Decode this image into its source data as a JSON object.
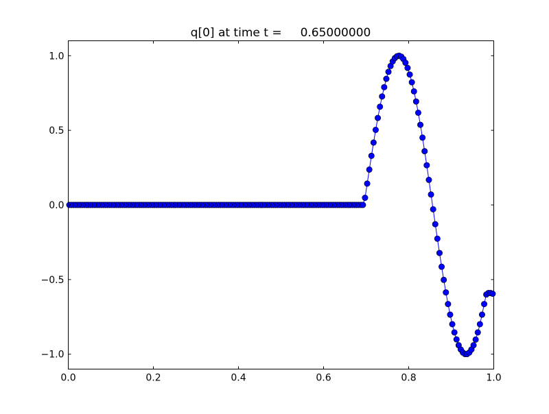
{
  "chart_data": {
    "type": "scatter",
    "title": "q[0] at time t =     0.65000000",
    "xlabel": "",
    "ylabel": "",
    "xlim": [
      0.0,
      1.0
    ],
    "ylim": [
      -1.1,
      1.1
    ],
    "grid": false,
    "marker_color": "#0000ff",
    "marker_edge_color": "#000000",
    "line_color": "#0000ff",
    "x_ticks": [
      "0.0",
      "0.2",
      "0.4",
      "0.6",
      "0.8",
      "1.0"
    ],
    "x_tick_values": [
      0.0,
      0.2,
      0.4,
      0.6,
      0.8,
      1.0
    ],
    "y_ticks": [
      "−1.0",
      "−0.5",
      "0.0",
      "0.5",
      "1.0"
    ],
    "y_tick_values": [
      -1.0,
      -0.5,
      0.0,
      0.5,
      1.0
    ],
    "x": [
      0.0025,
      0.0075,
      0.0125,
      0.0175,
      0.0225,
      0.0275,
      0.0325,
      0.0375,
      0.0425,
      0.0475,
      0.0525,
      0.0575,
      0.0625,
      0.0675,
      0.0725,
      0.0775,
      0.0825,
      0.0875,
      0.0925,
      0.0975,
      0.1025,
      0.1075,
      0.1125,
      0.1175,
      0.1225,
      0.1275,
      0.1325,
      0.1375,
      0.1425,
      0.1475,
      0.1525,
      0.1575,
      0.1625,
      0.1675,
      0.1725,
      0.1775,
      0.1825,
      0.1875,
      0.1925,
      0.1975,
      0.2025,
      0.2075,
      0.2125,
      0.2175,
      0.2225,
      0.2275,
      0.2325,
      0.2375,
      0.2425,
      0.2475,
      0.2525,
      0.2575,
      0.2625,
      0.2675,
      0.2725,
      0.2775,
      0.2825,
      0.2875,
      0.2925,
      0.2975,
      0.3025,
      0.3075,
      0.3125,
      0.3175,
      0.3225,
      0.3275,
      0.3325,
      0.3375,
      0.3425,
      0.3475,
      0.3525,
      0.3575,
      0.3625,
      0.3675,
      0.3725,
      0.3775,
      0.3825,
      0.3875,
      0.3925,
      0.3975,
      0.4025,
      0.4075,
      0.4125,
      0.4175,
      0.4225,
      0.4275,
      0.4325,
      0.4375,
      0.4425,
      0.4475,
      0.4525,
      0.4575,
      0.4625,
      0.4675,
      0.4725,
      0.4775,
      0.4825,
      0.4875,
      0.4925,
      0.4975,
      0.5025,
      0.5075,
      0.5125,
      0.5175,
      0.5225,
      0.5275,
      0.5325,
      0.5375,
      0.5425,
      0.5475,
      0.5525,
      0.5575,
      0.5625,
      0.5675,
      0.5725,
      0.5775,
      0.5825,
      0.5875,
      0.5925,
      0.5975,
      0.6025,
      0.6075,
      0.6125,
      0.6175,
      0.6225,
      0.6275,
      0.6325,
      0.6375,
      0.6425,
      0.6475,
      0.6525,
      0.6575,
      0.6625,
      0.6675,
      0.6725,
      0.6775,
      0.6825,
      0.6875,
      0.6925,
      0.6975,
      0.7025,
      0.7075,
      0.7125,
      0.7175,
      0.7225,
      0.7275,
      0.7325,
      0.7375,
      0.7425,
      0.7475,
      0.7525,
      0.7575,
      0.7625,
      0.7675,
      0.7725,
      0.7775,
      0.7825,
      0.7875,
      0.7925,
      0.7975,
      0.8025,
      0.8075,
      0.8125,
      0.8175,
      0.8225,
      0.8275,
      0.8325,
      0.8375,
      0.8425,
      0.8475,
      0.8525,
      0.8575,
      0.8625,
      0.8675,
      0.8725,
      0.8775,
      0.8825,
      0.8875,
      0.8925,
      0.8975,
      0.9025,
      0.9075,
      0.9125,
      0.9175,
      0.9225,
      0.9275,
      0.9325,
      0.9375,
      0.9425,
      0.9475,
      0.9525,
      0.9575,
      0.9625,
      0.9675,
      0.9725,
      0.9775,
      0.9825,
      0.9875,
      0.9925,
      0.9975
    ],
    "y": [
      0,
      0,
      0,
      0,
      0,
      0,
      0,
      0,
      0,
      0,
      0,
      0,
      0,
      0,
      0,
      0,
      0,
      0,
      0,
      0,
      0,
      0,
      0,
      0,
      0,
      0,
      0,
      0,
      0,
      0,
      0,
      0,
      0,
      0,
      0,
      0,
      0,
      0,
      0,
      0,
      0,
      0,
      0,
      0,
      0,
      0,
      0,
      0,
      0,
      0,
      0,
      0,
      0,
      0,
      0,
      0,
      0,
      0,
      0,
      0,
      0,
      0,
      0,
      0,
      0,
      0,
      0,
      0,
      0,
      0,
      0,
      0,
      0,
      0,
      0,
      0,
      0,
      0,
      0,
      0,
      0,
      0,
      0,
      0,
      0,
      0,
      0,
      0,
      0,
      0,
      0,
      0,
      0,
      0,
      0,
      0,
      0,
      0,
      0,
      0,
      0,
      0,
      0,
      0,
      0,
      0,
      0,
      0,
      0,
      0,
      0,
      0,
      0,
      0,
      0,
      0,
      0,
      0,
      0,
      0,
      0,
      0,
      0,
      0,
      0,
      0,
      0,
      0,
      0,
      0,
      0,
      0,
      0,
      0,
      0,
      0,
      0,
      0,
      0,
      0.048,
      0.143,
      0.237,
      0.329,
      0.418,
      0.503,
      0.583,
      0.658,
      0.727,
      0.789,
      0.845,
      0.892,
      0.931,
      0.962,
      0.984,
      0.996,
      1.0,
      0.994,
      0.978,
      0.953,
      0.918,
      0.874,
      0.822,
      0.761,
      0.693,
      0.618,
      0.537,
      0.451,
      0.36,
      0.266,
      0.168,
      0.07,
      -0.029,
      -0.129,
      -0.226,
      -0.322,
      -0.414,
      -0.502,
      -0.586,
      -0.664,
      -0.735,
      -0.799,
      -0.854,
      -0.901,
      -0.94,
      -0.969,
      -0.989,
      -0.999,
      -0.999,
      -0.989,
      -0.969,
      -0.94,
      -0.902,
      -0.854,
      -0.799,
      -0.735,
      -0.664,
      -0.6,
      -0.59,
      -0.59,
      -0.595
    ]
  }
}
